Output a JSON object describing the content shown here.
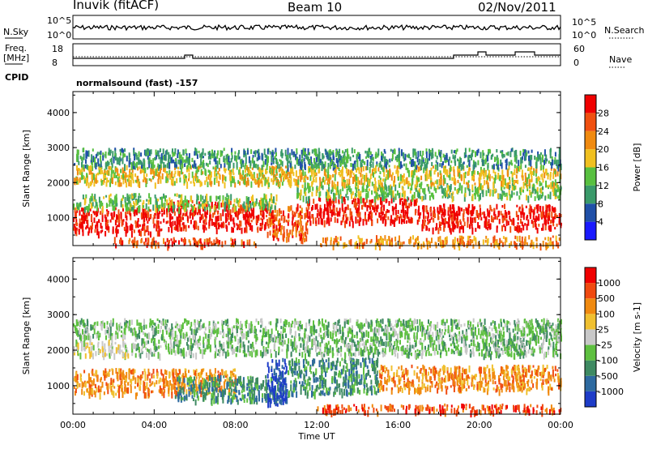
{
  "header": {
    "station": "Inuvik (fitACF)",
    "beam": "Beam 10",
    "date": "02/Nov/2011"
  },
  "noise_panel": {
    "left_label": "N.Sky",
    "left_ticks": [
      "10^5",
      "10^0"
    ],
    "right_label": "N.Search",
    "right_ticks": [
      "10^5",
      "10^0"
    ]
  },
  "freq_panel": {
    "left_label_1": "Freq.",
    "left_label_2": "[MHz]",
    "left_ticks": [
      "18",
      "8"
    ],
    "right_label": "Nave",
    "right_ticks": [
      "60",
      "0"
    ]
  },
  "cpid": {
    "label": "CPID",
    "text": "normalsound (fast) -157"
  },
  "chart_data": [
    {
      "type": "heatmap",
      "name": "power",
      "ylabel": "Slant Range [km]",
      "xlabel": "",
      "y_ticks": [
        "1000",
        "2000",
        "3000",
        "4000"
      ],
      "ylim": [
        200,
        4600
      ],
      "colorbar_title": "Power [dB]",
      "colorbar_labels": [
        "4",
        "8",
        "12",
        "16",
        "20",
        "24",
        "28"
      ],
      "colorbar_colors": [
        "#1a1aff",
        "#2050a8",
        "#3a9a6a",
        "#58c040",
        "#f0c020",
        "#f08a10",
        "#f05010",
        "#f00000"
      ],
      "bands": [
        {
          "t0": 0.0,
          "t1": 4.5,
          "r0": 600,
          "r1": 1300,
          "level": 7
        },
        {
          "t0": 4.5,
          "t1": 9.5,
          "r0": 700,
          "r1": 1500,
          "level": 7
        },
        {
          "t0": 9.5,
          "t1": 11.5,
          "r0": 400,
          "r1": 1400,
          "level": 6
        },
        {
          "t0": 11.5,
          "t1": 17.0,
          "r0": 900,
          "r1": 1600,
          "level": 7
        },
        {
          "t0": 17.0,
          "t1": 24.0,
          "r0": 700,
          "r1": 1400,
          "level": 7
        },
        {
          "t0": 0.0,
          "t1": 10.0,
          "r0": 1300,
          "r1": 1700,
          "level": 3
        },
        {
          "t0": 11.0,
          "t1": 24.0,
          "r0": 1600,
          "r1": 2000,
          "level": 3
        },
        {
          "t0": 0.0,
          "t1": 24.0,
          "r0": 2000,
          "r1": 2500,
          "level": 4
        },
        {
          "t0": 0.0,
          "t1": 24.0,
          "r0": 2500,
          "r1": 3000,
          "level": 2
        },
        {
          "t0": 2.0,
          "t1": 9.0,
          "r0": 250,
          "r1": 450,
          "level": 6
        },
        {
          "t0": 12.0,
          "t1": 24.0,
          "r0": 250,
          "r1": 500,
          "level": 5
        }
      ]
    },
    {
      "type": "heatmap",
      "name": "velocity",
      "ylabel": "Slant Range [km]",
      "xlabel": "Time UT",
      "x_ticks": [
        "00:00",
        "04:00",
        "08:00",
        "12:00",
        "16:00",
        "20:00",
        "00:00"
      ],
      "xlim": [
        0,
        24
      ],
      "y_ticks": [
        "1000",
        "2000",
        "3000",
        "4000"
      ],
      "ylim": [
        200,
        4600
      ],
      "colorbar_title": "Velocity [m s-1]",
      "colorbar_labels": [
        "1000",
        "500",
        "100",
        "25",
        "-25",
        "-100",
        "-500",
        "-1000"
      ],
      "colorbar_colors": [
        "#1e3cc8",
        "#2e6aa0",
        "#3e8a62",
        "#5ec040",
        "#c8c8c8",
        "#f0c030",
        "#f08a10",
        "#f04a10",
        "#f00000"
      ],
      "bands": [
        {
          "t0": 0.0,
          "t1": 8.0,
          "r0": 800,
          "r1": 1500,
          "level": 6
        },
        {
          "t0": 5.0,
          "t1": 10.5,
          "r0": 600,
          "r1": 1300,
          "level": 2
        },
        {
          "t0": 10.5,
          "t1": 15.0,
          "r0": 800,
          "r1": 1800,
          "level": 2
        },
        {
          "t0": 15.0,
          "t1": 24.0,
          "r0": 900,
          "r1": 1600,
          "level": 6
        },
        {
          "t0": 9.5,
          "t1": 10.5,
          "r0": 500,
          "r1": 1800,
          "level": 0
        },
        {
          "t0": 0.0,
          "t1": 3.0,
          "r0": 1900,
          "r1": 2300,
          "level": 4
        },
        {
          "t0": 3.0,
          "t1": 24.0,
          "r0": 1900,
          "r1": 2400,
          "level": 3
        },
        {
          "t0": 0.0,
          "t1": 24.0,
          "r0": 2400,
          "r1": 2900,
          "level": 3
        },
        {
          "t0": 12.0,
          "t1": 24.0,
          "r0": 300,
          "r1": 500,
          "level": 7
        }
      ]
    }
  ]
}
